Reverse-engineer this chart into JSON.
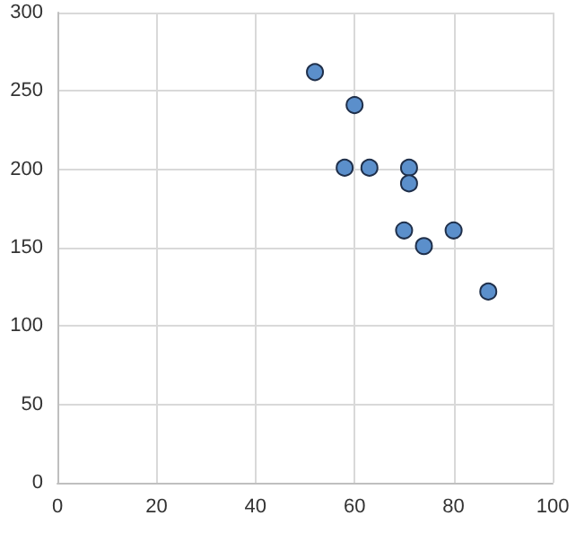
{
  "chart_data": {
    "type": "scatter",
    "x": [
      52,
      60,
      58,
      63,
      71,
      71,
      70,
      74,
      80,
      87
    ],
    "values": [
      262,
      241,
      201,
      201,
      201,
      191,
      161,
      151,
      161,
      122
    ],
    "color": "#5b8fcb",
    "marker": "circle",
    "xlim": [
      0,
      100
    ],
    "xticks": [
      0,
      20,
      40,
      60,
      80,
      100
    ],
    "ylim": [
      0,
      300
    ],
    "yticks": [
      0,
      50,
      100,
      150,
      200,
      250,
      300
    ],
    "grid": true
  }
}
